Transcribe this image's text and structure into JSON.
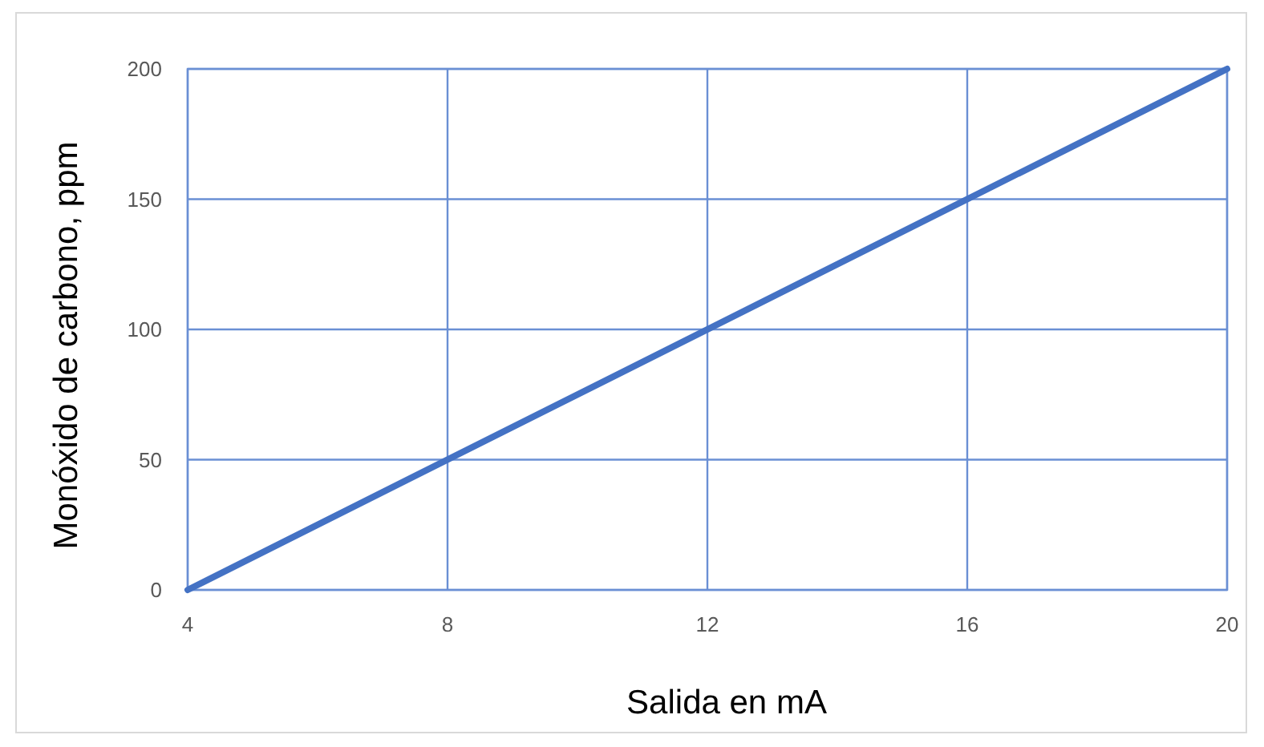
{
  "chart_data": {
    "type": "line",
    "xlabel": "Salida en mA",
    "ylabel": "Monóxido de carbono, ppm",
    "series": [
      {
        "color": "#4472c4",
        "values": [
          0,
          200
        ],
        "x": [
          4,
          20
        ]
      }
    ],
    "xlim": [
      4,
      20
    ],
    "xticks": [
      4,
      8,
      12,
      16,
      20
    ],
    "ylim": [
      0,
      200
    ],
    "yticks": [
      0,
      50,
      100,
      150,
      200
    ],
    "grid": true
  }
}
